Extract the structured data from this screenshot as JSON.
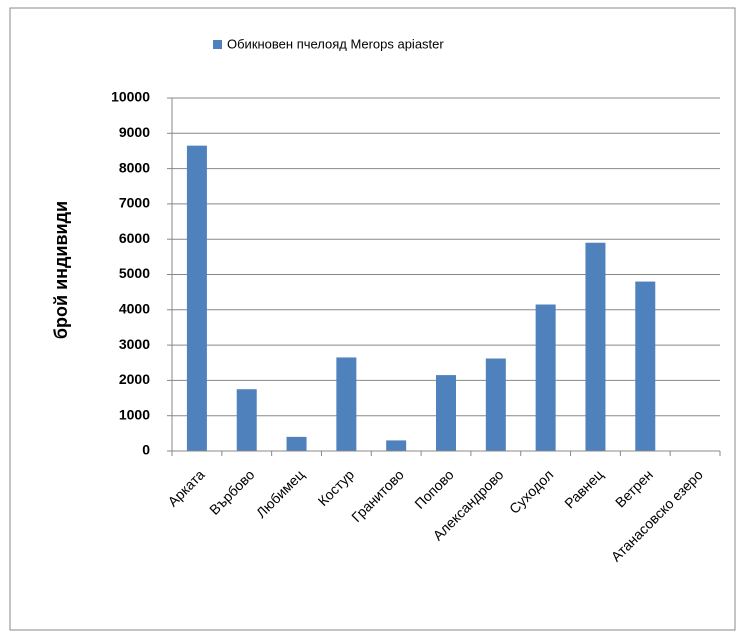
{
  "chart_data": {
    "type": "bar",
    "ylabel": "брой индивиди",
    "categories": [
      "Арката",
      "Върбово",
      "Любимец",
      "Костур",
      "Гранитово",
      "Попово",
      "Александрово",
      "Суходол",
      "Равнец",
      "Ветрен",
      "Атанасовско езеро"
    ],
    "series": [
      {
        "name": "Обикновен пчелояд Merops apiaster",
        "color": "#4f81bd",
        "values": [
          8650,
          1750,
          400,
          2650,
          300,
          2150,
          2620,
          4150,
          5900,
          4800,
          0
        ]
      }
    ],
    "ylim": [
      0,
      10000
    ],
    "yticks": [
      0,
      1000,
      2000,
      3000,
      4000,
      5000,
      6000,
      7000,
      8000,
      9000,
      10000
    ],
    "grid": true,
    "legend": "top"
  }
}
